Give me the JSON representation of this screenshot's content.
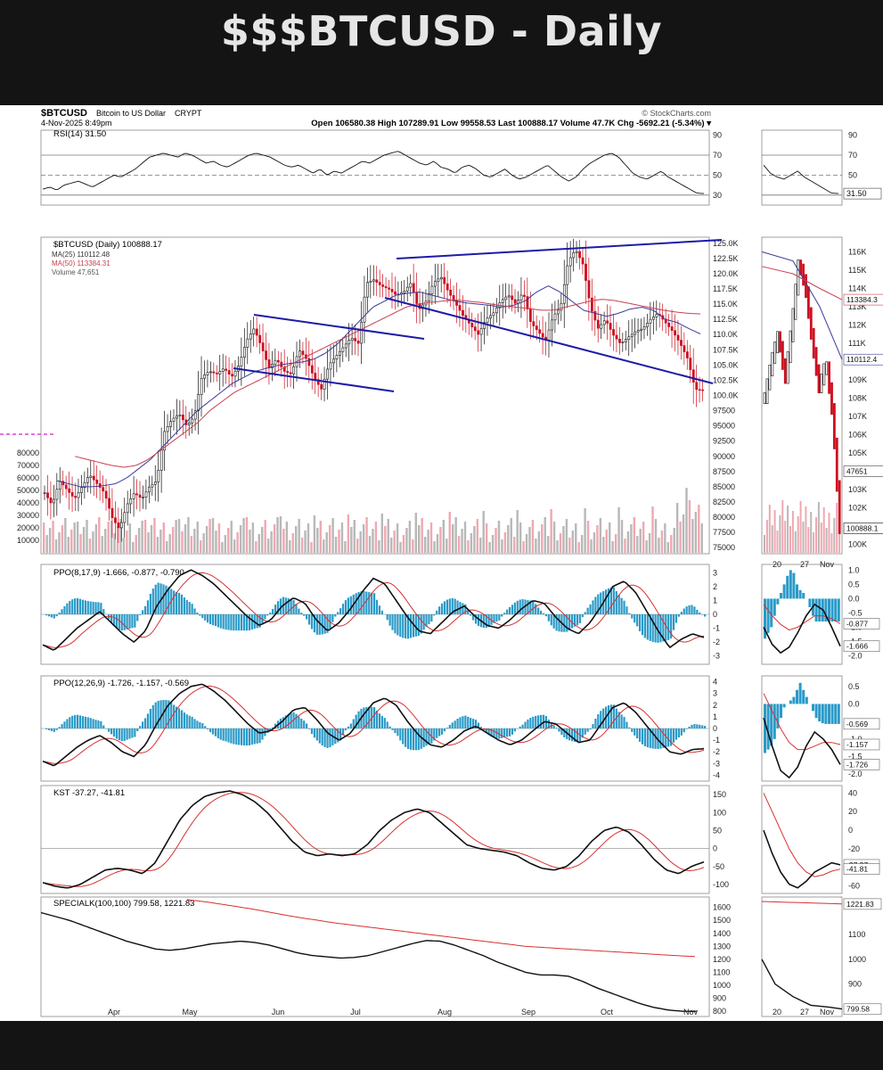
{
  "page": {
    "title": "$$$BTCUSD - Daily"
  },
  "header": {
    "symbol": "$BTCUSD",
    "name": "Bitcoin to US Dollar",
    "exchange": "CRYPT",
    "datetime": "4-Nov-2025 8:49pm",
    "brand": "© StockCharts.com",
    "quote": "Open 106580.38  High 107289.91  Low 99558.53  Last 100888.17  Volume 47.7K  Chg -5692.21 (-5.34%) ▾"
  },
  "colors": {
    "up": "#111111",
    "down": "#cc1020",
    "ma25": "#3b3b9a",
    "ma50": "#c84050",
    "trend": "#1c1ca8",
    "hist": "#2a9ac8",
    "signal": "#d83030",
    "magenta": "#cc22cc"
  },
  "chart_data": [
    {
      "type": "line",
      "panel": "rsi",
      "label": "RSI(14) 31.50",
      "current": 31.5,
      "y_ticks": [
        "90",
        "70",
        "50",
        "30"
      ],
      "zoom_current_label": "31.50",
      "series": [
        {
          "name": "RSI(14)",
          "values": [
            36,
            38,
            35,
            40,
            42,
            44,
            41,
            38,
            42,
            46,
            50,
            48,
            52,
            56,
            62,
            68,
            70,
            72,
            70,
            68,
            72,
            70,
            66,
            62,
            64,
            60,
            58,
            62,
            66,
            70,
            72,
            70,
            68,
            64,
            60,
            58,
            60,
            56,
            52,
            56,
            50,
            54,
            52,
            56,
            60,
            64,
            62,
            66,
            70,
            72,
            74,
            70,
            66,
            62,
            60,
            64,
            58,
            56,
            52,
            58,
            60,
            56,
            50,
            48,
            52,
            56,
            50,
            46,
            48,
            52,
            56,
            60,
            54,
            48,
            44,
            48,
            56,
            62,
            66,
            70,
            72,
            68,
            60,
            52,
            48,
            46,
            50,
            54,
            48,
            44,
            40,
            36,
            32,
            31.5
          ]
        }
      ]
    },
    {
      "type": "candlestick",
      "panel": "price",
      "label": "$BTCUSD (Daily) 100888.17",
      "legend": [
        "MA(25) 110112.48",
        "MA(50) 113384.31",
        "Volume 47,651"
      ],
      "x_ticks": [
        "Apr",
        "May",
        "Jun",
        "Jul",
        "Aug",
        "Sep",
        "Oct",
        "Nov"
      ],
      "y_ticks": [
        "125.0K",
        "122.5K",
        "120.0K",
        "117.5K",
        "115.0K",
        "112.5K",
        "110.0K",
        "107.5K",
        "105.0K",
        "102.5K",
        "100.0K",
        "97500",
        "95000",
        "92500",
        "90000",
        "87500",
        "85000",
        "82500",
        "80000",
        "77500",
        "75000"
      ],
      "volume_ticks": [
        "80000",
        "70000",
        "60000",
        "50000",
        "40000",
        "30000",
        "20000",
        "10000"
      ],
      "closes": [
        84000,
        82000,
        86000,
        84500,
        83000,
        85000,
        87000,
        85500,
        84000,
        80000,
        78000,
        82000,
        84000,
        83000,
        85000,
        86000,
        94000,
        96000,
        97000,
        95000,
        96500,
        103000,
        104000,
        103500,
        104500,
        103000,
        105000,
        109000,
        111000,
        108000,
        104500,
        106000,
        104000,
        103500,
        107500,
        106000,
        103000,
        101000,
        105000,
        106500,
        108000,
        109500,
        108500,
        118500,
        119000,
        118000,
        117500,
        116500,
        117000,
        118500,
        114000,
        115500,
        118500,
        119500,
        117000,
        115000,
        113000,
        111500,
        110000,
        112500,
        113500,
        115500,
        116500,
        115000,
        117000,
        112000,
        110500,
        109000,
        113000,
        114500,
        122000,
        124000,
        121500,
        114500,
        111000,
        112500,
        110000,
        108500,
        109500,
        110500,
        111000,
        112500,
        113500,
        112000,
        110500,
        108500,
        106000,
        101000,
        100888.17
      ],
      "ma25": [
        86000,
        85500,
        85000,
        85000,
        85200,
        85500,
        86500,
        88000,
        89500,
        91500,
        93500,
        95500,
        97500,
        99000,
        100500,
        102000,
        103000,
        104000,
        104500,
        105000,
        105300,
        105500,
        106000,
        107000,
        108500,
        110500,
        112500,
        114500,
        115500,
        116500,
        116800,
        117000,
        116500,
        116000,
        115500,
        115200,
        115000,
        114800,
        114500,
        114800,
        115500,
        117000,
        118000,
        117000,
        115500,
        114000,
        113500,
        113000,
        113500,
        114200,
        114500,
        114000,
        112500,
        112000,
        111000,
        110112.48
      ],
      "ma50": [
        90000,
        89500,
        89000,
        88500,
        88200,
        88500,
        89500,
        91000,
        92500,
        94000,
        95500,
        97500,
        99000,
        100500,
        101500,
        102500,
        103500,
        104500,
        105500,
        106500,
        107500,
        108500,
        109500,
        110500,
        111500,
        112500,
        113500,
        114500,
        115000,
        115300,
        115500,
        115700,
        115500,
        115300,
        115000,
        114700,
        114500,
        114300,
        114000,
        114000,
        114500,
        115000,
        115500,
        115800,
        115600,
        115200,
        114800,
        114400,
        114000,
        113700,
        113500,
        113384.31
      ],
      "ylim": [
        74000,
        126000
      ],
      "trendlines": [
        "upper channel",
        "lower channel",
        "flag upper",
        "flag lower"
      ],
      "zoom_y_ticks": [
        "116K",
        "115K",
        "114K",
        "113K",
        "112K",
        "111K",
        "110K",
        "109K",
        "108K",
        "107K",
        "106K",
        "105K",
        "104K",
        "103K",
        "102K",
        "101K",
        "100K"
      ],
      "zoom_x_ticks": [
        "20",
        "27",
        "Nov"
      ],
      "zoom_labels": [
        "113384.3",
        "110112.4",
        "47651",
        "100888.1"
      ]
    },
    {
      "type": "line",
      "panel": "ppo1",
      "label": "PPO(8,17,9) -1.666, -0.877, -0.790",
      "values": {
        "ppo": -1.666,
        "signal": -0.877,
        "histogram": -0.79
      },
      "y_ticks": [
        "3",
        "2",
        "1",
        "0",
        "-1",
        "-2",
        "-3"
      ],
      "zoom_y_ticks": [
        "1.0",
        "0.5",
        "0.0",
        "-0.5",
        "-1.0",
        "-1.5",
        "-2.0"
      ],
      "zoom_labels": [
        "-0.877",
        "-1.666"
      ],
      "ppo_series": [
        -2.2,
        -2.6,
        -1.8,
        -1.0,
        -0.4,
        0.2,
        -0.6,
        -1.4,
        -2.0,
        -1.2,
        0.6,
        1.8,
        2.8,
        3.2,
        2.8,
        2.2,
        1.4,
        0.6,
        -0.2,
        -0.8,
        -0.4,
        0.6,
        1.2,
        0.8,
        -0.4,
        -1.2,
        -0.6,
        0.4,
        1.6,
        2.6,
        2.2,
        1.0,
        -0.2,
        -1.2,
        -1.4,
        -0.6,
        0.2,
        0.6,
        -0.2,
        -0.8,
        -1.0,
        -0.4,
        0.4,
        1.0,
        0.8,
        -0.2,
        -1.0,
        -1.4,
        -0.6,
        0.6,
        2.0,
        2.4,
        1.6,
        0.2,
        -1.2,
        -2.4,
        -1.8,
        -1.4,
        -1.666
      ]
    },
    {
      "type": "line",
      "panel": "ppo2",
      "label": "PPO(12,26,9) -1.726, -1.157, -0.569",
      "values": {
        "ppo": -1.726,
        "signal": -1.157,
        "histogram": -0.569
      },
      "y_ticks": [
        "4",
        "3",
        "2",
        "1",
        "0",
        "-1",
        "-2",
        "-3",
        "-4"
      ],
      "zoom_y_ticks": [
        "0.5",
        "0.0",
        "-0.5",
        "-1.0",
        "-1.5",
        "-2.0"
      ],
      "zoom_labels": [
        "-0.569",
        "-1.157",
        "-1.726"
      ],
      "ppo_series": [
        -2.8,
        -3.2,
        -2.4,
        -1.6,
        -1.0,
        -0.6,
        -1.2,
        -2.0,
        -2.4,
        -1.4,
        0.4,
        2.0,
        3.0,
        3.6,
        3.8,
        3.2,
        2.4,
        1.4,
        0.4,
        -0.4,
        -0.2,
        0.6,
        1.6,
        1.8,
        0.8,
        -0.4,
        -1.0,
        -0.4,
        1.0,
        2.2,
        2.6,
        2.0,
        0.6,
        -0.6,
        -1.4,
        -1.6,
        -1.0,
        -0.2,
        0.2,
        -0.4,
        -1.0,
        -1.4,
        -1.0,
        -0.2,
        0.6,
        0.4,
        -0.4,
        -1.2,
        -1.0,
        0.4,
        1.8,
        2.2,
        1.4,
        0.2,
        -1.0,
        -2.0,
        -2.2,
        -1.8,
        -1.726
      ]
    },
    {
      "type": "line",
      "panel": "kst",
      "label": "KST -37.27, -41.81",
      "values": {
        "kst": -37.27,
        "signal": -41.81
      },
      "y_ticks": [
        "150",
        "100",
        "50",
        "0",
        "-50",
        "-100"
      ],
      "zoom_y_ticks": [
        "40",
        "20",
        "0",
        "-20",
        "-40",
        "-60"
      ],
      "zoom_labels": [
        "-37.27",
        "-41.81"
      ],
      "kst_series": [
        -95,
        -105,
        -110,
        -100,
        -80,
        -60,
        -55,
        -60,
        -70,
        -40,
        20,
        80,
        120,
        145,
        155,
        160,
        150,
        130,
        100,
        60,
        20,
        -10,
        -20,
        -15,
        -20,
        -15,
        10,
        50,
        80,
        100,
        110,
        100,
        70,
        40,
        10,
        0,
        -5,
        -10,
        -20,
        -40,
        -55,
        -60,
        -50,
        -20,
        20,
        50,
        60,
        45,
        10,
        -30,
        -60,
        -70,
        -50,
        -37.27
      ]
    },
    {
      "type": "line",
      "panel": "specialk",
      "label": "SPECIALK(100,100) 799.58, 1221.83",
      "values": {
        "specialk": 799.58,
        "signal": 1221.83
      },
      "y_ticks": [
        "1600",
        "1500",
        "1400",
        "1300",
        "1200",
        "1100",
        "1000",
        "900",
        "800"
      ],
      "zoom_y_ticks": [
        "1221.83",
        "1100",
        "1000",
        "900",
        "799.58"
      ],
      "zoom_x_ticks": [
        "20",
        "27",
        "Nov"
      ],
      "specialk_series": [
        1560,
        1530,
        1500,
        1460,
        1420,
        1380,
        1340,
        1310,
        1280,
        1270,
        1280,
        1300,
        1320,
        1330,
        1340,
        1330,
        1310,
        1280,
        1250,
        1230,
        1220,
        1210,
        1215,
        1230,
        1260,
        1290,
        1320,
        1345,
        1340,
        1310,
        1270,
        1230,
        1180,
        1140,
        1100,
        1080,
        1080,
        1070,
        1030,
        980,
        940,
        900,
        860,
        830,
        810,
        800,
        799.58
      ],
      "signal_series": [
        1660,
        1640,
        1615,
        1590,
        1560,
        1530,
        1505,
        1480,
        1460,
        1440,
        1420,
        1400,
        1380,
        1360,
        1340,
        1320,
        1300,
        1290,
        1280,
        1270,
        1260,
        1250,
        1240,
        1230,
        1221.83
      ]
    }
  ]
}
